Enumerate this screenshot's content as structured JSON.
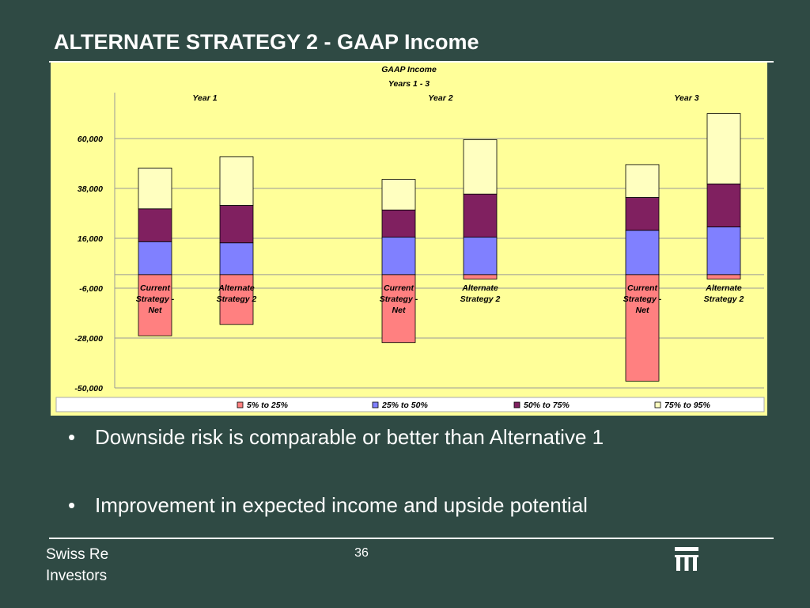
{
  "slide": {
    "title": "ALTERNATE STRATEGY 2 - GAAP Income",
    "bullets": [
      "Downside risk is comparable or better than Alternative 1",
      "Improvement in expected income and upside potential"
    ],
    "footer_company_line1": "Swiss Re",
    "footer_company_line2": "Investors",
    "page_number": "36",
    "logo_icon": "swiss-re-logo-icon",
    "background_color": "#2f4a44"
  },
  "chart_data": {
    "type": "bar",
    "stacked": "floating-percentile-range",
    "title": "GAAP Income",
    "subtitle": "Years 1 - 3",
    "groups": [
      "Year 1",
      "Year 2",
      "Year 3"
    ],
    "categories": [
      [
        "Current",
        "Strategy -",
        "Net"
      ],
      [
        "Alternate",
        "Strategy 2"
      ],
      [
        "Current",
        "Strategy -",
        "Net"
      ],
      [
        "Alternate",
        "Strategy 2"
      ],
      [
        "Current",
        "Strategy -",
        "Net"
      ],
      [
        "Alternate",
        "Strategy 2"
      ]
    ],
    "boundaries": [
      [
        -27000,
        0,
        14500,
        29000,
        47000
      ],
      [
        -22000,
        0,
        14000,
        30500,
        52000
      ],
      [
        -30000,
        0,
        16500,
        28500,
        42000
      ],
      [
        -2000,
        0,
        16500,
        35500,
        59500
      ],
      [
        -47000,
        0,
        19500,
        34000,
        48500
      ],
      [
        -2000,
        0,
        21000,
        40000,
        71000
      ]
    ],
    "series": [
      {
        "name": "5% to 25%",
        "color": "#ff8080"
      },
      {
        "name": "25% to 50%",
        "color": "#8080ff"
      },
      {
        "name": "50% to 75%",
        "color": "#802060"
      },
      {
        "name": "75% to 95%",
        "color": "#ffffc0"
      }
    ],
    "yticks": [
      "60,000",
      "38,000",
      "16,000",
      "-6,000",
      "-28,000",
      "-50,000"
    ],
    "ytick_values": [
      60000,
      38000,
      16000,
      -6000,
      -28000,
      -50000
    ],
    "ylim": [
      -50000,
      82000
    ],
    "grid": true,
    "legend_position": "bottom",
    "plot_background": "#ffff99"
  }
}
